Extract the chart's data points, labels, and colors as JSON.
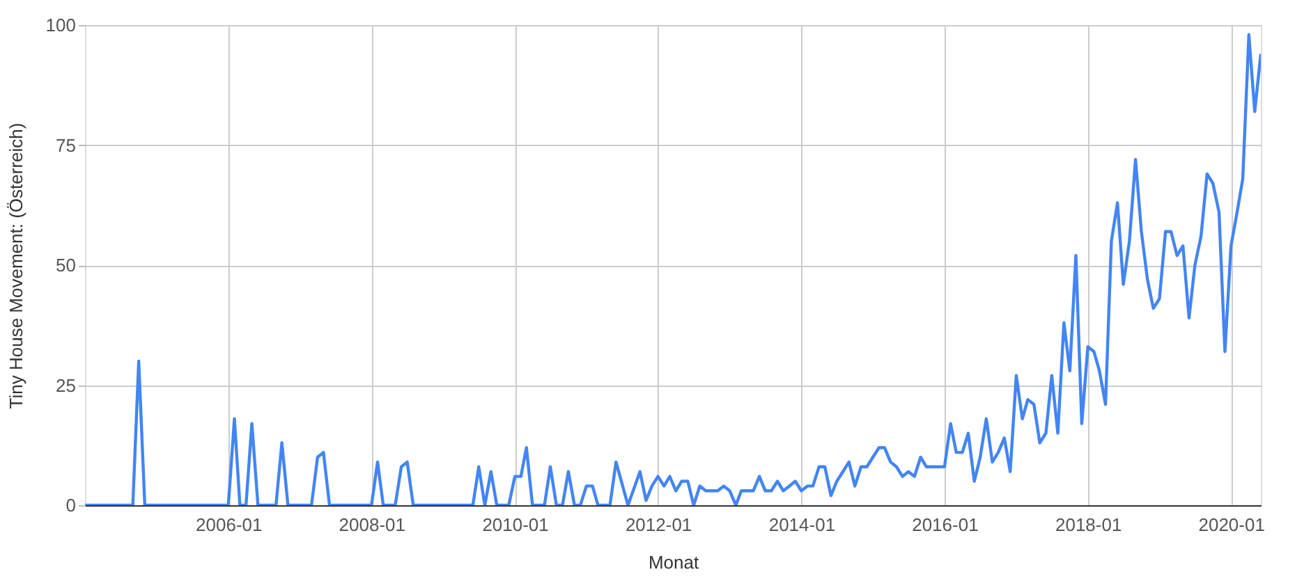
{
  "chart_data": {
    "type": "line",
    "xlabel": "Monat",
    "ylabel": "Tiny House Movement: (Österreich)",
    "x": [
      "2004-01",
      "2004-09",
      "2004-10",
      "2004-11",
      "2006-01",
      "2006-02",
      "2006-03",
      "2006-04",
      "2006-05",
      "2006-06",
      "2006-09",
      "2006-10",
      "2006-11",
      "2007-03",
      "2007-04",
      "2007-05",
      "2007-06",
      "2008-01",
      "2008-02",
      "2008-03",
      "2008-05",
      "2008-06",
      "2008-07",
      "2008-08",
      "2009-06",
      "2009-07",
      "2009-08",
      "2009-09",
      "2009-10",
      "2009-12",
      "2010-01",
      "2010-02",
      "2010-03",
      "2010-04",
      "2010-06",
      "2010-07",
      "2010-08",
      "2010-09",
      "2010-10",
      "2010-11",
      "2010-12",
      "2011-01",
      "2011-02",
      "2011-03",
      "2011-05",
      "2011-06",
      "2011-08",
      "2011-10",
      "2011-11",
      "2011-12",
      "2012-01",
      "2012-02",
      "2012-03",
      "2012-04",
      "2012-05",
      "2012-06",
      "2012-07",
      "2012-08",
      "2012-09",
      "2012-10",
      "2012-11",
      "2012-12",
      "2013-01",
      "2013-02",
      "2013-03",
      "2013-04",
      "2013-05",
      "2013-06",
      "2013-07",
      "2013-08",
      "2013-09",
      "2013-10",
      "2013-11",
      "2013-12",
      "2014-01",
      "2014-02",
      "2014-03",
      "2014-04",
      "2014-05",
      "2014-06",
      "2014-07",
      "2014-08",
      "2014-09",
      "2014-10",
      "2014-11",
      "2014-12",
      "2015-01",
      "2015-02",
      "2015-03",
      "2015-04",
      "2015-05",
      "2015-06",
      "2015-07",
      "2015-08",
      "2015-09",
      "2015-10",
      "2015-11",
      "2015-12",
      "2016-01",
      "2016-02",
      "2016-03",
      "2016-04",
      "2016-05",
      "2016-06",
      "2016-07",
      "2016-08",
      "2016-09",
      "2016-10",
      "2016-11",
      "2016-12",
      "2017-01",
      "2017-02",
      "2017-03",
      "2017-04",
      "2017-05",
      "2017-06",
      "2017-07",
      "2017-08",
      "2017-09",
      "2017-10",
      "2017-11",
      "2017-12",
      "2018-01",
      "2018-02",
      "2018-03",
      "2018-04",
      "2018-05",
      "2018-06",
      "2018-07",
      "2018-08",
      "2018-09",
      "2018-10",
      "2018-11",
      "2018-12",
      "2019-01",
      "2019-02",
      "2019-03",
      "2019-04",
      "2019-05",
      "2019-06",
      "2019-07",
      "2019-08",
      "2019-09",
      "2019-10",
      "2019-11",
      "2019-12",
      "2020-01",
      "2020-02",
      "2020-03",
      "2020-04",
      "2020-05",
      "2020-06"
    ],
    "series": [
      {
        "color": "#4285f4",
        "values": [
          0,
          0,
          30,
          0,
          0,
          18,
          0,
          0,
          17,
          0,
          0,
          13,
          0,
          0,
          10,
          11,
          0,
          0,
          9,
          0,
          0,
          8,
          9,
          0,
          0,
          8,
          0,
          7,
          0,
          0,
          6,
          6,
          12,
          0,
          0,
          8,
          0,
          0,
          7,
          0,
          0,
          4,
          4,
          0,
          0,
          9,
          0,
          7,
          1,
          4,
          6,
          4,
          6,
          3,
          5,
          5,
          0,
          4,
          3,
          3,
          3,
          4,
          3,
          0,
          3,
          3,
          3,
          6,
          3,
          3,
          5,
          3,
          4,
          5,
          3,
          4,
          4,
          8,
          8,
          2,
          5,
          7,
          9,
          4,
          8,
          8,
          10,
          12,
          12,
          9,
          8,
          6,
          7,
          6,
          10,
          8,
          8,
          8,
          8,
          17,
          11,
          11,
          15,
          5,
          10,
          18,
          9,
          11,
          14,
          7,
          27,
          18,
          22,
          21,
          13,
          15,
          27,
          15,
          38,
          28,
          52,
          17,
          33,
          32,
          28,
          21,
          55,
          63,
          46,
          55,
          72,
          57,
          47,
          41,
          43,
          57,
          57,
          52,
          54,
          39,
          50,
          56,
          69,
          67,
          61,
          32,
          54,
          61,
          68,
          98,
          82,
          94
        ]
      }
    ],
    "xlim": [
      "2004-01",
      "2020-06"
    ],
    "xticks": [
      "2006-01",
      "2008-01",
      "2010-01",
      "2012-01",
      "2014-01",
      "2016-01",
      "2018-01",
      "2020-01"
    ],
    "ylim": [
      0,
      100
    ],
    "yticks": [
      0,
      25,
      50,
      75,
      100
    ],
    "grid": true,
    "marker": "none",
    "line_style": "solid"
  }
}
